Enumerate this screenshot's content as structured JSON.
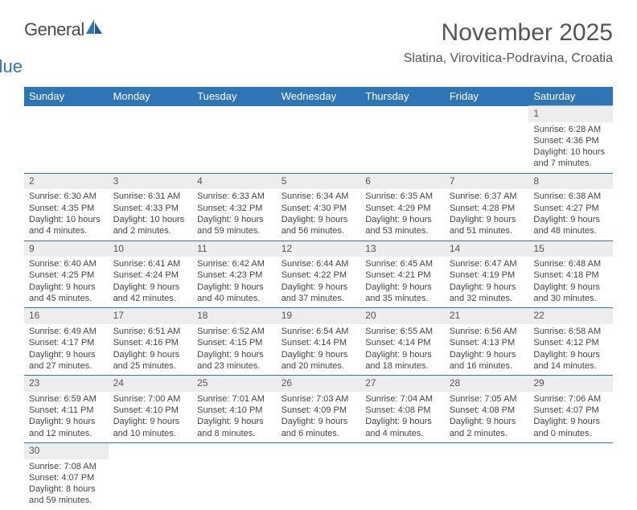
{
  "brand": {
    "general": "General",
    "blue": "Blue"
  },
  "title": "November 2025",
  "location": "Slatina, Virovitica-Podravina, Croatia",
  "headers": [
    "Sunday",
    "Monday",
    "Tuesday",
    "Wednesday",
    "Thursday",
    "Friday",
    "Saturday"
  ],
  "colors": {
    "header_bg": "#2e75b6",
    "header_text": "#ffffff",
    "daynum_bg": "#ededed",
    "rule": "#2e75b6",
    "brand_blue": "#2e75b6",
    "text": "#444444"
  },
  "weeks": [
    {
      "nums": [
        "",
        "",
        "",
        "",
        "",
        "",
        "1"
      ],
      "cells": [
        null,
        null,
        null,
        null,
        null,
        null,
        {
          "sr": "Sunrise: 6:28 AM",
          "ss": "Sunset: 4:36 PM",
          "d1": "Daylight: 10 hours",
          "d2": "and 7 minutes."
        }
      ]
    },
    {
      "nums": [
        "2",
        "3",
        "4",
        "5",
        "6",
        "7",
        "8"
      ],
      "cells": [
        {
          "sr": "Sunrise: 6:30 AM",
          "ss": "Sunset: 4:35 PM",
          "d1": "Daylight: 10 hours",
          "d2": "and 4 minutes."
        },
        {
          "sr": "Sunrise: 6:31 AM",
          "ss": "Sunset: 4:33 PM",
          "d1": "Daylight: 10 hours",
          "d2": "and 2 minutes."
        },
        {
          "sr": "Sunrise: 6:33 AM",
          "ss": "Sunset: 4:32 PM",
          "d1": "Daylight: 9 hours",
          "d2": "and 59 minutes."
        },
        {
          "sr": "Sunrise: 6:34 AM",
          "ss": "Sunset: 4:30 PM",
          "d1": "Daylight: 9 hours",
          "d2": "and 56 minutes."
        },
        {
          "sr": "Sunrise: 6:35 AM",
          "ss": "Sunset: 4:29 PM",
          "d1": "Daylight: 9 hours",
          "d2": "and 53 minutes."
        },
        {
          "sr": "Sunrise: 6:37 AM",
          "ss": "Sunset: 4:28 PM",
          "d1": "Daylight: 9 hours",
          "d2": "and 51 minutes."
        },
        {
          "sr": "Sunrise: 6:38 AM",
          "ss": "Sunset: 4:27 PM",
          "d1": "Daylight: 9 hours",
          "d2": "and 48 minutes."
        }
      ]
    },
    {
      "nums": [
        "9",
        "10",
        "11",
        "12",
        "13",
        "14",
        "15"
      ],
      "cells": [
        {
          "sr": "Sunrise: 6:40 AM",
          "ss": "Sunset: 4:25 PM",
          "d1": "Daylight: 9 hours",
          "d2": "and 45 minutes."
        },
        {
          "sr": "Sunrise: 6:41 AM",
          "ss": "Sunset: 4:24 PM",
          "d1": "Daylight: 9 hours",
          "d2": "and 42 minutes."
        },
        {
          "sr": "Sunrise: 6:42 AM",
          "ss": "Sunset: 4:23 PM",
          "d1": "Daylight: 9 hours",
          "d2": "and 40 minutes."
        },
        {
          "sr": "Sunrise: 6:44 AM",
          "ss": "Sunset: 4:22 PM",
          "d1": "Daylight: 9 hours",
          "d2": "and 37 minutes."
        },
        {
          "sr": "Sunrise: 6:45 AM",
          "ss": "Sunset: 4:21 PM",
          "d1": "Daylight: 9 hours",
          "d2": "and 35 minutes."
        },
        {
          "sr": "Sunrise: 6:47 AM",
          "ss": "Sunset: 4:19 PM",
          "d1": "Daylight: 9 hours",
          "d2": "and 32 minutes."
        },
        {
          "sr": "Sunrise: 6:48 AM",
          "ss": "Sunset: 4:18 PM",
          "d1": "Daylight: 9 hours",
          "d2": "and 30 minutes."
        }
      ]
    },
    {
      "nums": [
        "16",
        "17",
        "18",
        "19",
        "20",
        "21",
        "22"
      ],
      "cells": [
        {
          "sr": "Sunrise: 6:49 AM",
          "ss": "Sunset: 4:17 PM",
          "d1": "Daylight: 9 hours",
          "d2": "and 27 minutes."
        },
        {
          "sr": "Sunrise: 6:51 AM",
          "ss": "Sunset: 4:16 PM",
          "d1": "Daylight: 9 hours",
          "d2": "and 25 minutes."
        },
        {
          "sr": "Sunrise: 6:52 AM",
          "ss": "Sunset: 4:15 PM",
          "d1": "Daylight: 9 hours",
          "d2": "and 23 minutes."
        },
        {
          "sr": "Sunrise: 6:54 AM",
          "ss": "Sunset: 4:14 PM",
          "d1": "Daylight: 9 hours",
          "d2": "and 20 minutes."
        },
        {
          "sr": "Sunrise: 6:55 AM",
          "ss": "Sunset: 4:14 PM",
          "d1": "Daylight: 9 hours",
          "d2": "and 18 minutes."
        },
        {
          "sr": "Sunrise: 6:56 AM",
          "ss": "Sunset: 4:13 PM",
          "d1": "Daylight: 9 hours",
          "d2": "and 16 minutes."
        },
        {
          "sr": "Sunrise: 6:58 AM",
          "ss": "Sunset: 4:12 PM",
          "d1": "Daylight: 9 hours",
          "d2": "and 14 minutes."
        }
      ]
    },
    {
      "nums": [
        "23",
        "24",
        "25",
        "26",
        "27",
        "28",
        "29"
      ],
      "cells": [
        {
          "sr": "Sunrise: 6:59 AM",
          "ss": "Sunset: 4:11 PM",
          "d1": "Daylight: 9 hours",
          "d2": "and 12 minutes."
        },
        {
          "sr": "Sunrise: 7:00 AM",
          "ss": "Sunset: 4:10 PM",
          "d1": "Daylight: 9 hours",
          "d2": "and 10 minutes."
        },
        {
          "sr": "Sunrise: 7:01 AM",
          "ss": "Sunset: 4:10 PM",
          "d1": "Daylight: 9 hours",
          "d2": "and 8 minutes."
        },
        {
          "sr": "Sunrise: 7:03 AM",
          "ss": "Sunset: 4:09 PM",
          "d1": "Daylight: 9 hours",
          "d2": "and 6 minutes."
        },
        {
          "sr": "Sunrise: 7:04 AM",
          "ss": "Sunset: 4:08 PM",
          "d1": "Daylight: 9 hours",
          "d2": "and 4 minutes."
        },
        {
          "sr": "Sunrise: 7:05 AM",
          "ss": "Sunset: 4:08 PM",
          "d1": "Daylight: 9 hours",
          "d2": "and 2 minutes."
        },
        {
          "sr": "Sunrise: 7:06 AM",
          "ss": "Sunset: 4:07 PM",
          "d1": "Daylight: 9 hours",
          "d2": "and 0 minutes."
        }
      ]
    },
    {
      "nums": [
        "30",
        "",
        "",
        "",
        "",
        "",
        ""
      ],
      "cells": [
        {
          "sr": "Sunrise: 7:08 AM",
          "ss": "Sunset: 4:07 PM",
          "d1": "Daylight: 8 hours",
          "d2": "and 59 minutes."
        },
        null,
        null,
        null,
        null,
        null,
        null
      ]
    }
  ]
}
